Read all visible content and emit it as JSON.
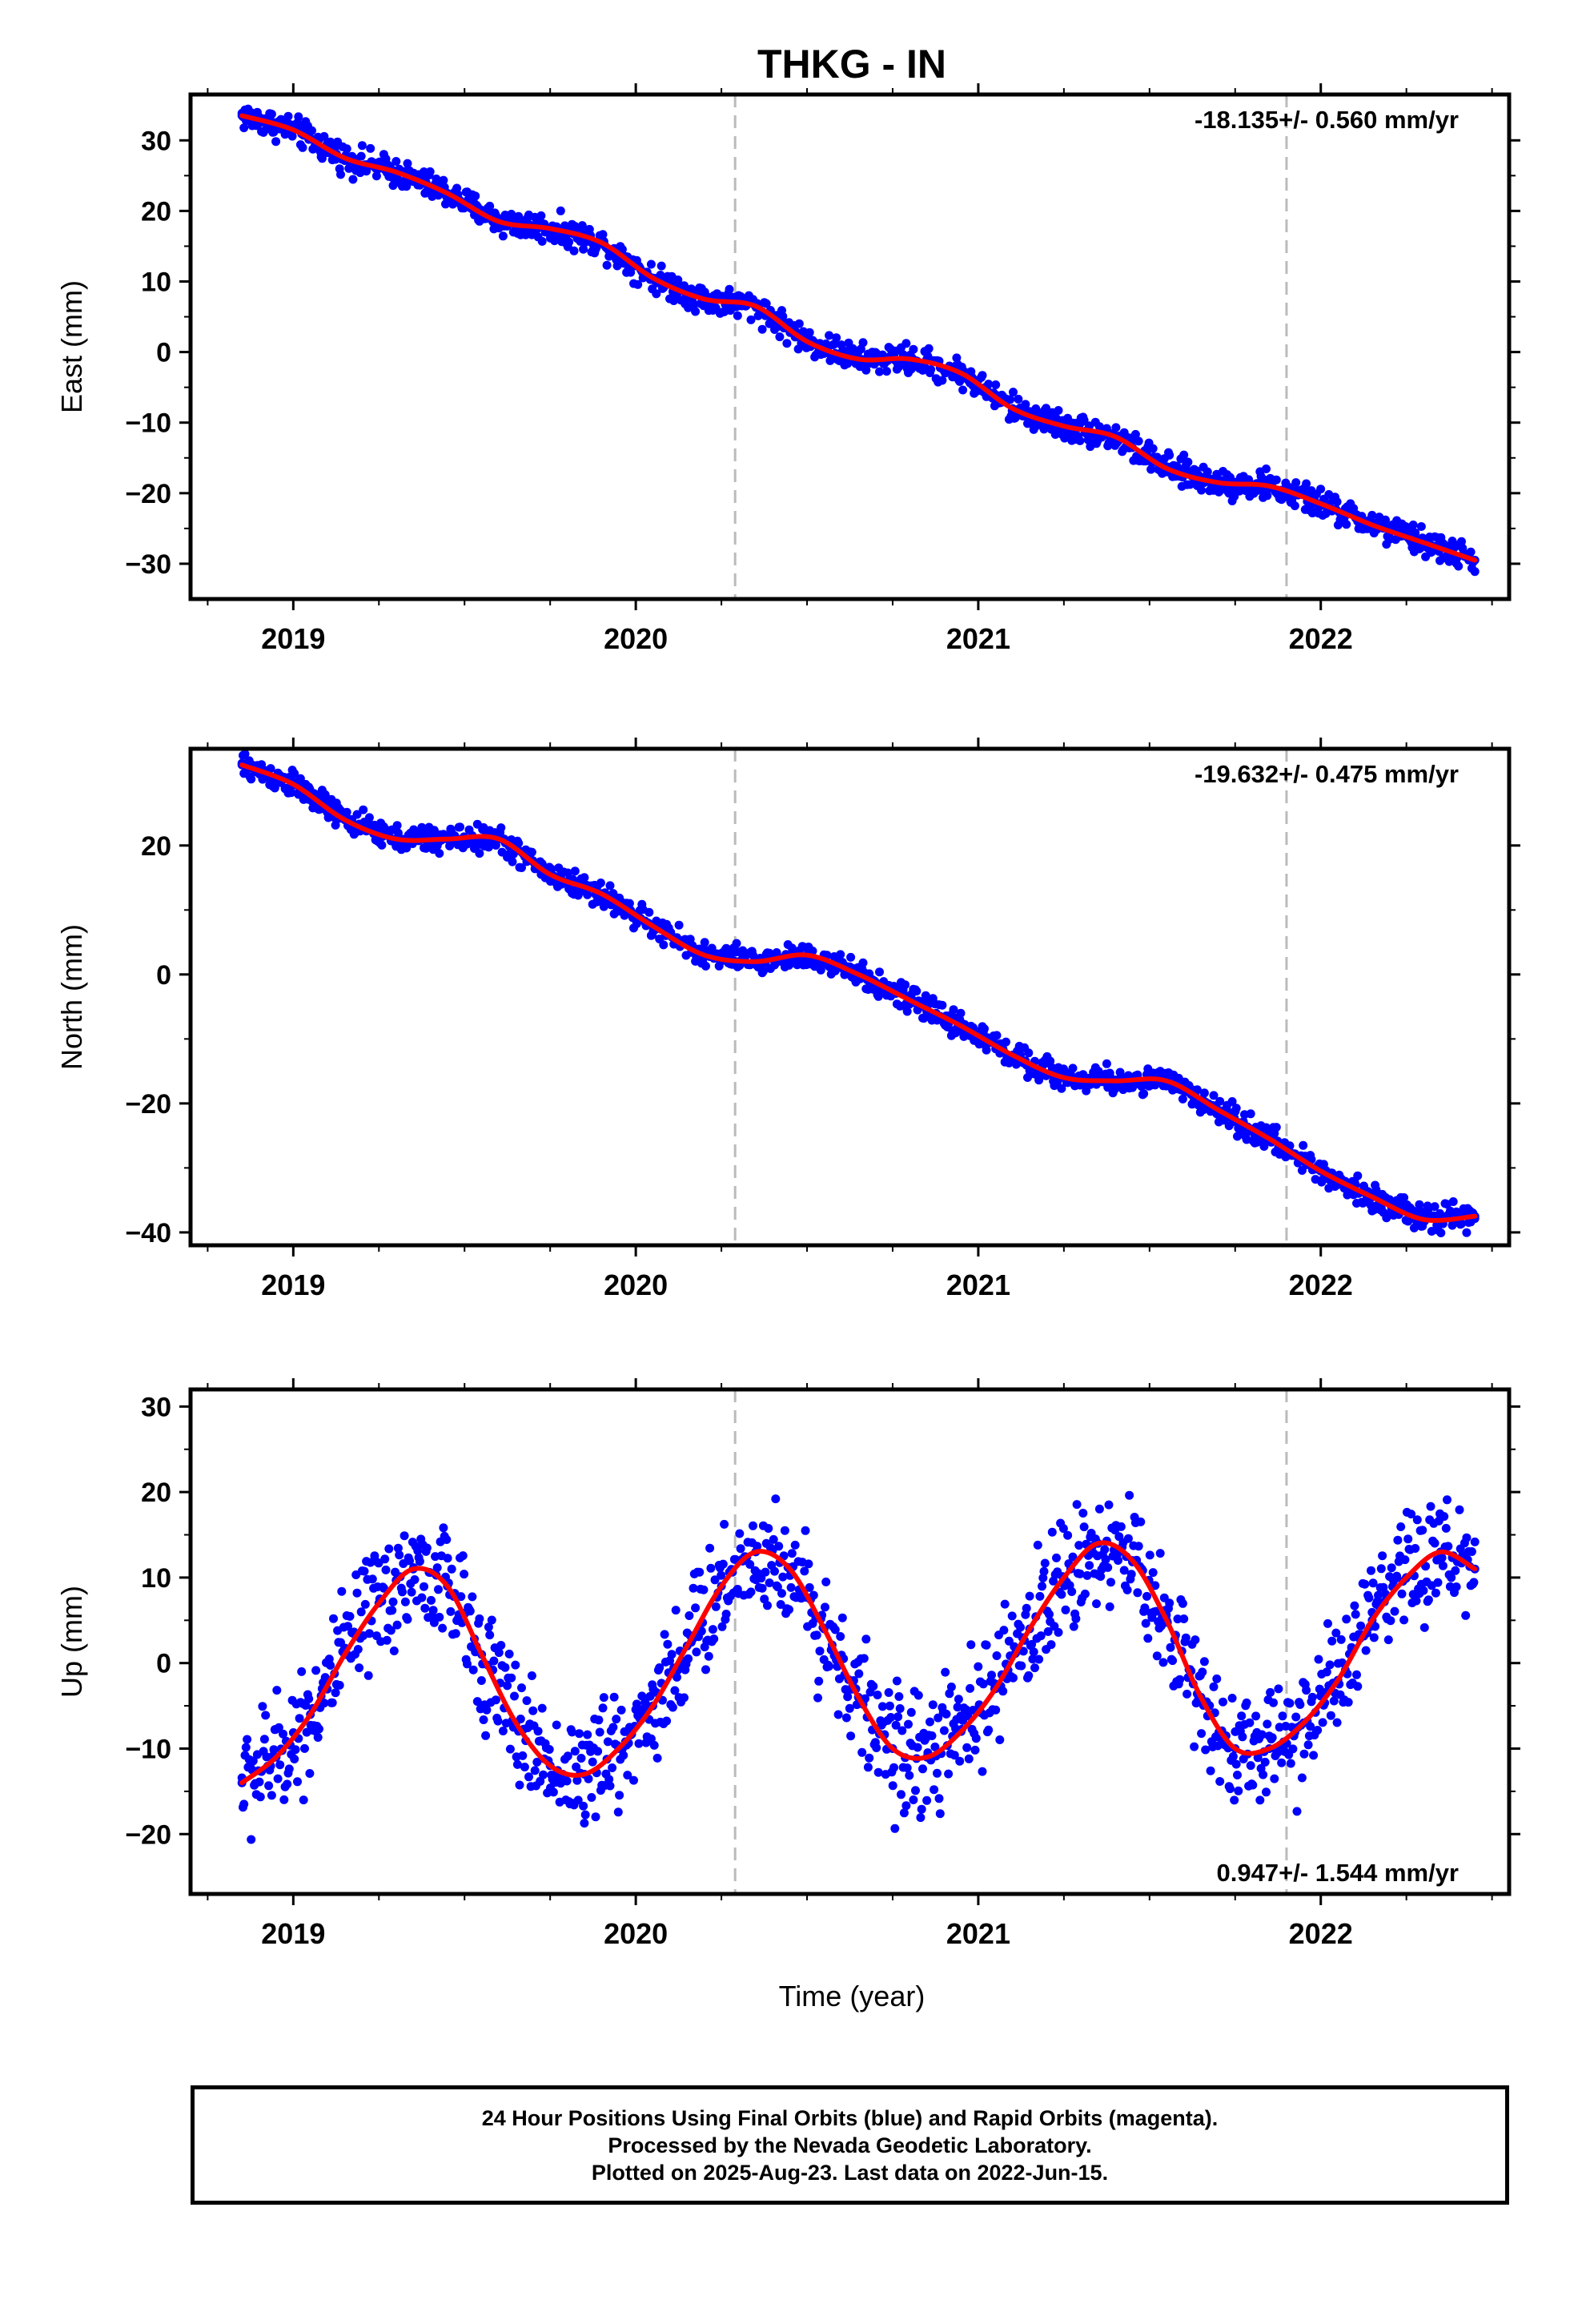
{
  "title": "THKG - IN",
  "colors": {
    "final_points": "#0000ff",
    "model_curve": "#ff0000",
    "event_lines": "#bbbbbb",
    "frame": "#000000"
  },
  "x_axis": {
    "label": "Time (year)",
    "range": [
      2018.7,
      2022.55
    ],
    "ticks": [
      2019,
      2020,
      2021,
      2022
    ],
    "tick_labels": [
      "2019",
      "2020",
      "2021",
      "2022"
    ]
  },
  "chart_data": [
    {
      "type": "scatter",
      "component": "East",
      "ylabel": "East (mm)",
      "ylim": [
        -35,
        36.5
      ],
      "yticks": [
        30,
        20,
        10,
        0,
        -10,
        -20,
        -30
      ],
      "ytick_labels": [
        "30",
        "20",
        "10",
        "0",
        "−10",
        "−20",
        "−30"
      ],
      "rate_text": "-18.135+/- 0.560 mm/yr",
      "rate_position": "top-right",
      "event_lines_x": [
        2020.29,
        2021.9
      ],
      "series": [
        {
          "name": "Final Orbits",
          "style": "points",
          "x": [
            2018.85,
            2019.0,
            2019.15,
            2019.3,
            2019.45,
            2019.6,
            2019.75,
            2019.9,
            2020.05,
            2020.2,
            2020.35,
            2020.5,
            2020.65,
            2020.8,
            2020.95,
            2021.1,
            2021.25,
            2021.4,
            2021.55,
            2021.7,
            2021.85,
            2022.0,
            2022.15,
            2022.3,
            2022.45
          ],
          "values": [
            33.5,
            31.5,
            27.5,
            25.5,
            22.5,
            18.5,
            17.5,
            15.5,
            10.5,
            7.5,
            6.5,
            1.5,
            -1.0,
            -1.0,
            -3.0,
            -8.0,
            -10.5,
            -12.0,
            -16.5,
            -18.5,
            -19.0,
            -21.5,
            -24.5,
            -27.0,
            -29.5
          ]
        },
        {
          "name": "Model",
          "style": "line",
          "x": [
            2018.85,
            2019.0,
            2019.15,
            2019.3,
            2019.45,
            2019.6,
            2019.75,
            2019.9,
            2020.05,
            2020.2,
            2020.35,
            2020.5,
            2020.65,
            2020.8,
            2020.95,
            2021.1,
            2021.25,
            2021.4,
            2021.55,
            2021.7,
            2021.85,
            2022.0,
            2022.15,
            2022.3,
            2022.45
          ],
          "values": [
            33.5,
            31.5,
            27.5,
            25.5,
            22.5,
            18.5,
            17.5,
            15.5,
            10.5,
            7.5,
            6.5,
            1.5,
            -1.0,
            -1.0,
            -3.0,
            -8.0,
            -10.5,
            -12.0,
            -16.5,
            -18.5,
            -19.0,
            -21.5,
            -24.5,
            -27.0,
            -29.5
          ]
        }
      ]
    },
    {
      "type": "scatter",
      "component": "North",
      "ylabel": "North (mm)",
      "ylim": [
        -42,
        35
      ],
      "yticks": [
        20,
        0,
        -20,
        -40
      ],
      "ytick_labels": [
        "20",
        "0",
        "−20",
        "−40"
      ],
      "rate_text": "-19.632+/- 0.475 mm/yr",
      "rate_position": "top-right",
      "event_lines_x": [
        2020.29,
        2021.9
      ],
      "series": [
        {
          "name": "Final Orbits",
          "style": "points",
          "x": [
            2018.85,
            2019.0,
            2019.15,
            2019.3,
            2019.45,
            2019.6,
            2019.75,
            2019.9,
            2020.05,
            2020.2,
            2020.35,
            2020.5,
            2020.65,
            2020.8,
            2020.95,
            2021.1,
            2021.25,
            2021.4,
            2021.55,
            2021.7,
            2021.85,
            2022.0,
            2022.15,
            2022.3,
            2022.45
          ],
          "values": [
            32.5,
            29.5,
            24.0,
            21.0,
            21.0,
            21.0,
            15.5,
            12.5,
            7.5,
            3.0,
            2.0,
            3.0,
            0.0,
            -4.0,
            -8.0,
            -12.5,
            -16.0,
            -16.5,
            -16.5,
            -21.0,
            -25.5,
            -30.5,
            -34.5,
            -38.0,
            -37.5
          ]
        },
        {
          "name": "Model",
          "style": "line",
          "x": [
            2018.85,
            2019.0,
            2019.15,
            2019.3,
            2019.45,
            2019.6,
            2019.75,
            2019.9,
            2020.05,
            2020.2,
            2020.35,
            2020.5,
            2020.65,
            2020.8,
            2020.95,
            2021.1,
            2021.25,
            2021.4,
            2021.55,
            2021.7,
            2021.85,
            2022.0,
            2022.15,
            2022.3,
            2022.45
          ],
          "values": [
            32.5,
            29.5,
            24.0,
            21.0,
            21.0,
            21.0,
            15.5,
            12.5,
            7.5,
            3.0,
            2.0,
            3.0,
            0.0,
            -4.0,
            -8.0,
            -12.5,
            -16.0,
            -16.5,
            -16.5,
            -21.0,
            -25.5,
            -30.5,
            -34.5,
            -38.0,
            -37.5
          ]
        }
      ]
    },
    {
      "type": "scatter",
      "component": "Up",
      "ylabel": "Up (mm)",
      "ylim": [
        -27,
        32
      ],
      "yticks": [
        30,
        20,
        10,
        0,
        -10,
        -20
      ],
      "ytick_labels": [
        "30",
        "20",
        "10",
        "0",
        "−10",
        "−20"
      ],
      "rate_text": "0.947+/- 1.544 mm/yr",
      "rate_position": "bottom-right",
      "event_lines_x": [
        2020.29,
        2021.9
      ],
      "series": [
        {
          "name": "Final Orbits",
          "style": "points",
          "x": [
            2018.85,
            2018.95,
            2019.05,
            2019.15,
            2019.25,
            2019.35,
            2019.45,
            2019.55,
            2019.65,
            2019.75,
            2019.85,
            2019.95,
            2020.05,
            2020.15,
            2020.25,
            2020.35,
            2020.45,
            2020.55,
            2020.65,
            2020.75,
            2020.85,
            2020.95,
            2021.05,
            2021.15,
            2021.25,
            2021.35,
            2021.45,
            2021.55,
            2021.65,
            2021.75,
            2021.85,
            2021.95,
            2022.05,
            2022.15,
            2022.25,
            2022.35,
            2022.45
          ],
          "values": [
            -14,
            -11,
            -6,
            1,
            7,
            11,
            9,
            1,
            -7,
            -12,
            -13,
            -10,
            -5,
            2,
            9,
            13,
            11,
            4,
            -4,
            -10,
            -11,
            -8,
            -3,
            4,
            10,
            14,
            12,
            5,
            -4,
            -10,
            -10,
            -7,
            -2,
            5,
            10,
            13,
            11
          ]
        },
        {
          "name": "Model",
          "style": "line",
          "x": [
            2018.85,
            2018.95,
            2019.05,
            2019.15,
            2019.25,
            2019.35,
            2019.45,
            2019.55,
            2019.65,
            2019.75,
            2019.85,
            2019.95,
            2020.05,
            2020.15,
            2020.25,
            2020.35,
            2020.45,
            2020.55,
            2020.65,
            2020.75,
            2020.85,
            2020.95,
            2021.05,
            2021.15,
            2021.25,
            2021.35,
            2021.45,
            2021.55,
            2021.65,
            2021.75,
            2021.85,
            2021.95,
            2022.05,
            2022.15,
            2022.25,
            2022.35,
            2022.45
          ],
          "values": [
            -14,
            -11,
            -6,
            1,
            7,
            11,
            9,
            1,
            -7,
            -12,
            -13,
            -10,
            -5,
            2,
            9,
            13,
            11,
            4,
            -4,
            -10,
            -11,
            -8,
            -3,
            4,
            10,
            14,
            12,
            5,
            -4,
            -10,
            -10,
            -7,
            -2,
            5,
            10,
            13,
            11
          ]
        }
      ]
    }
  ],
  "footer": {
    "line1": "24 Hour Positions Using Final Orbits (blue) and Rapid Orbits (magenta).",
    "line2": "Processed by the Nevada Geodetic Laboratory.",
    "line3": "Plotted on 2025-Aug-23. Last data on 2022-Jun-15."
  }
}
